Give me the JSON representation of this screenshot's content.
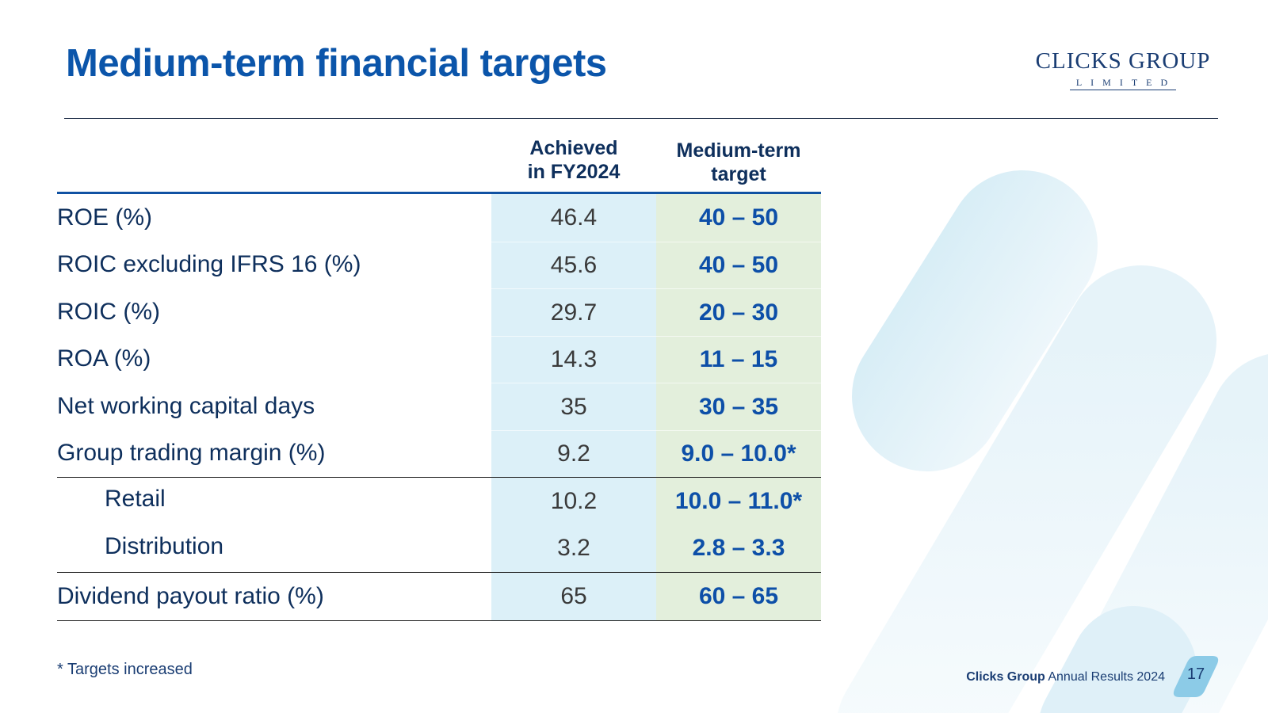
{
  "slide": {
    "title": "Medium-term financial targets",
    "logo": {
      "main": "CLICKS GROUP",
      "sub": "LIMITED"
    },
    "table": {
      "headers": {
        "achieved": "Achieved in FY2024",
        "target": "Medium-term target"
      },
      "rows": [
        {
          "label": "ROE (%)",
          "achieved": "46.4",
          "target": "40 – 50"
        },
        {
          "label": "ROIC excluding IFRS 16 (%)",
          "achieved": "45.6",
          "target": "40 – 50"
        },
        {
          "label": "ROIC (%)",
          "achieved": "29.7",
          "target": "20 – 30"
        },
        {
          "label": "ROA (%)",
          "achieved": "14.3",
          "target": "11 – 15"
        },
        {
          "label": "Net working capital days",
          "achieved": "35",
          "target": "30 – 35"
        },
        {
          "label": "Group trading margin (%)",
          "achieved": "9.2",
          "target": "9.0 – 10.0*"
        },
        {
          "label": "Retail",
          "achieved": "10.2",
          "target": "10.0 – 11.0*"
        },
        {
          "label": "Distribution",
          "achieved": "3.2",
          "target": "2.8 – 3.3"
        },
        {
          "label": "Dividend payout ratio (%)",
          "achieved": "65",
          "target": "60 – 65"
        }
      ]
    },
    "footnote": "* Targets increased",
    "footer": {
      "company": "Clicks Group",
      "text": "Annual Results 2024"
    },
    "page_number": "17"
  },
  "colors": {
    "title": "#0b55aa",
    "achieved_bg": "#dcf0f8",
    "target_bg": "#e3efdc",
    "target_text": "#0d4fa8",
    "header_rule": "#1052a3"
  }
}
